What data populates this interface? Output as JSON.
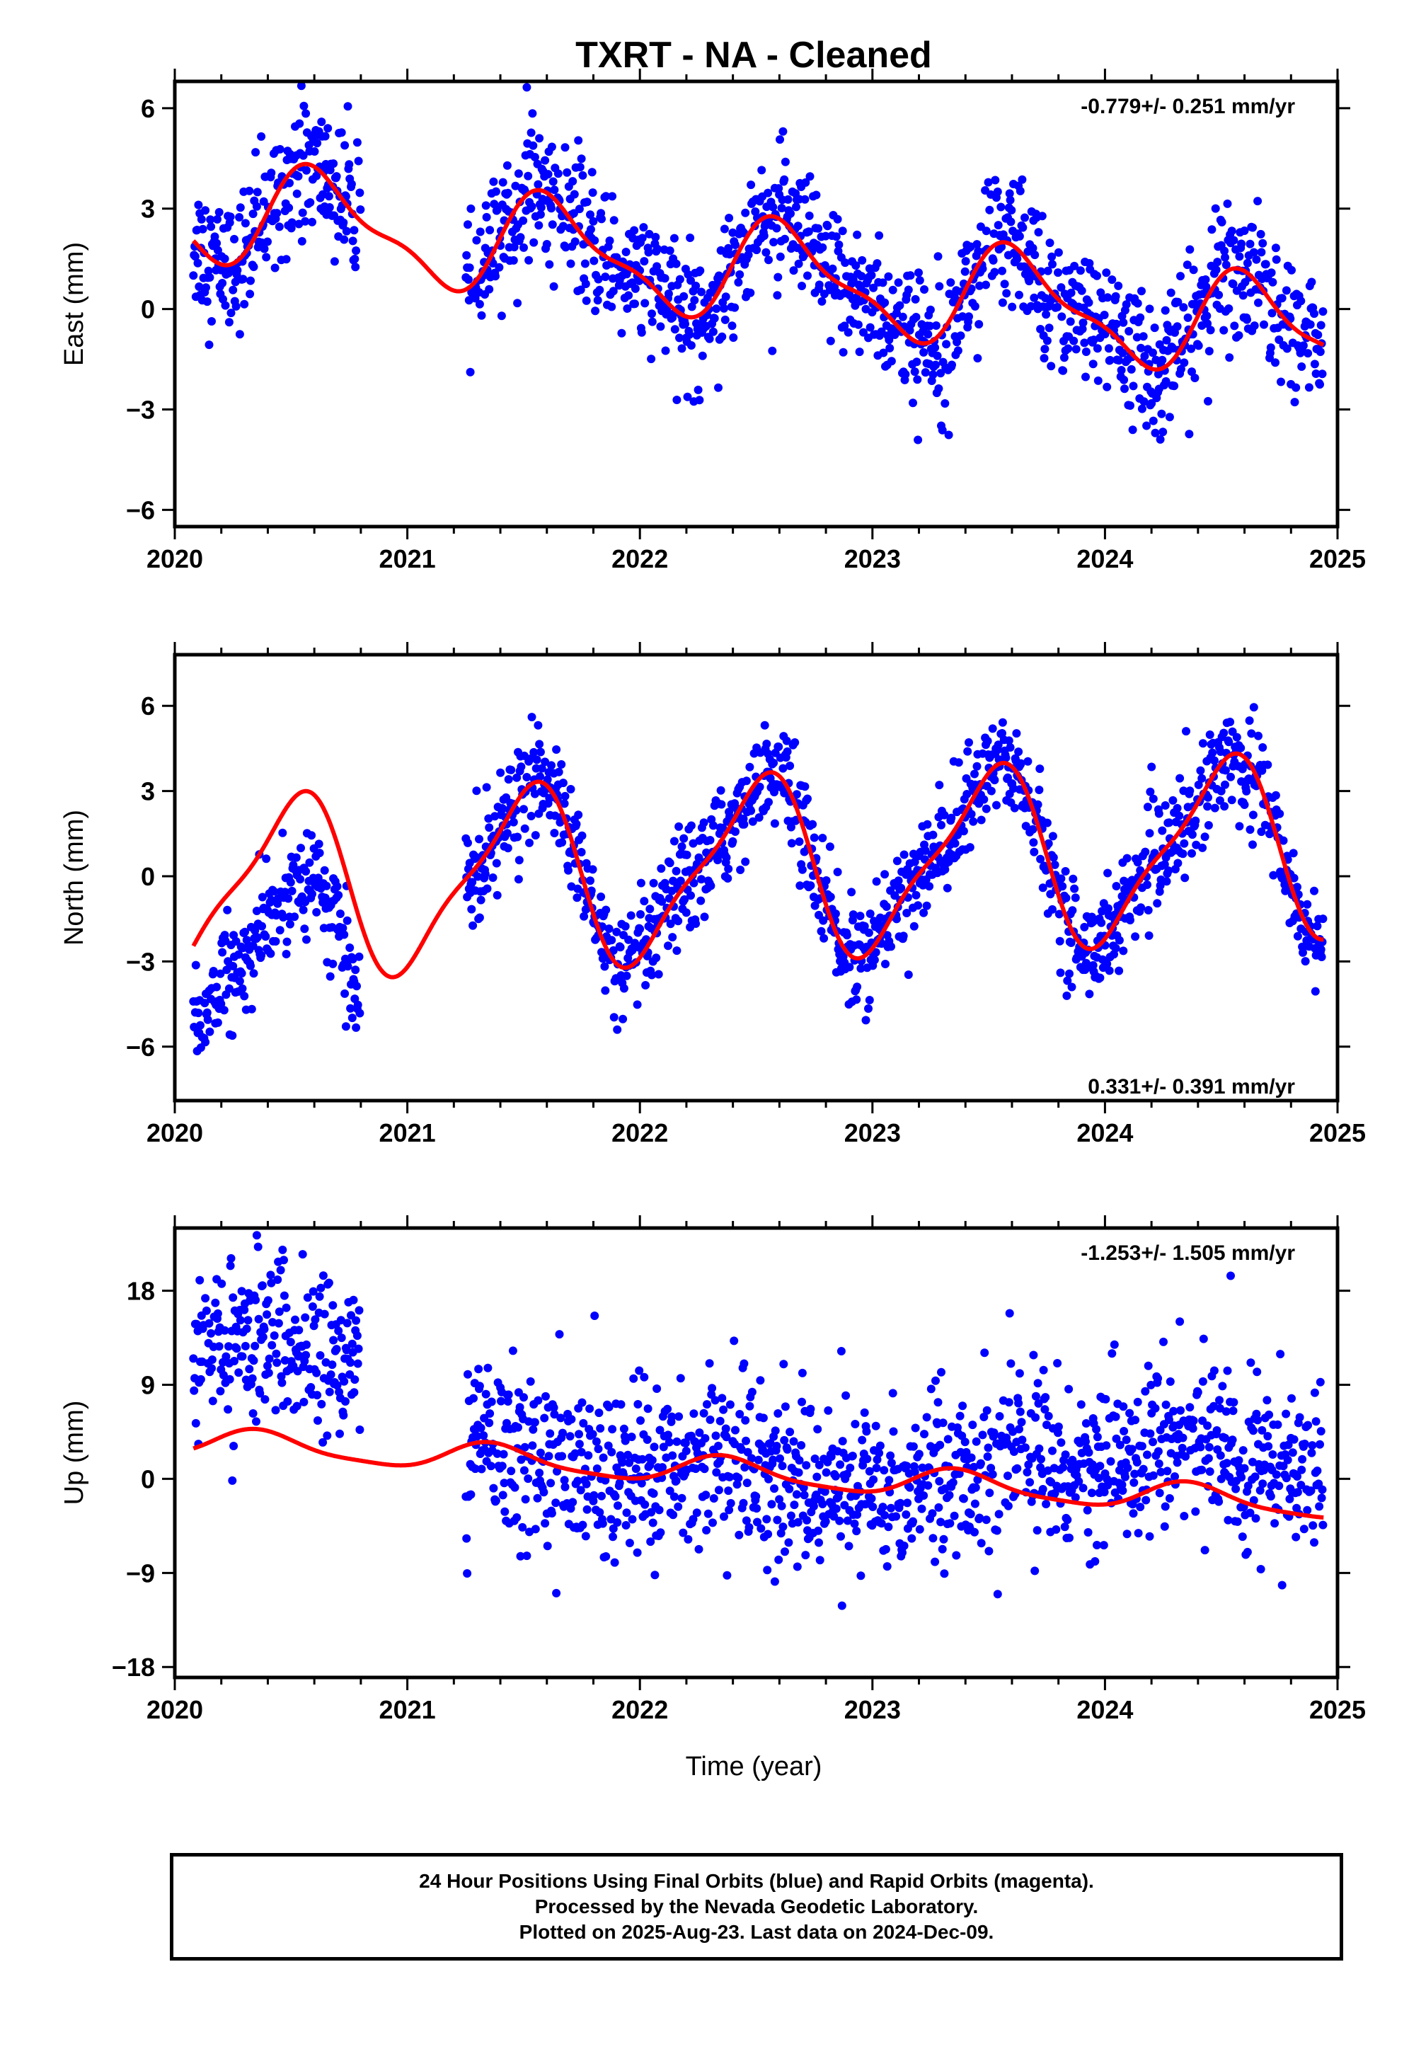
{
  "title": "TXRT  - NA - Cleaned",
  "xlabel": "Time (year)",
  "caption": [
    "24 Hour Positions Using Final Orbits (blue) and Rapid Orbits (magenta).",
    "Processed by the Nevada Geodetic Laboratory.",
    "Plotted on 2025-Aug-23. Last data on 2024-Dec-09."
  ],
  "colors": {
    "points": "#0000ff",
    "model": "#ff0000",
    "axes": "#000000"
  },
  "chart_data": [
    {
      "type": "scatter",
      "ylabel": "East (mm)",
      "rate_label": "-0.779+/- 0.251 mm/yr",
      "xlim": [
        2020,
        2025
      ],
      "ylim": [
        -6.5,
        6.8
      ],
      "xticks": [
        2020,
        2021,
        2022,
        2023,
        2024,
        2025
      ],
      "yticks": [
        -6,
        -3,
        0,
        3,
        6
      ],
      "ytick_labels": [
        "−6",
        "−3",
        "0",
        "3",
        "6"
      ],
      "series": [
        {
          "style": "points",
          "x_range": [
            2020.08,
            2024.94
          ],
          "gap": [
            2020.8,
            2021.25
          ],
          "mean_offset": 1.1,
          "trend": -0.779,
          "annual_amp": 1.4,
          "annual_phase": 0.38,
          "semi_amp": 0.5,
          "semi_phase": 0.9,
          "noise": 1.0,
          "mean_x": 2022.5
        },
        {
          "style": "model"
        }
      ]
    },
    {
      "type": "scatter",
      "ylabel": "North (mm)",
      "rate_label": "0.331+/- 0.391 mm/yr",
      "xlim": [
        2020,
        2025
      ],
      "ylim": [
        -7.9,
        7.8
      ],
      "xticks": [
        2020,
        2021,
        2022,
        2023,
        2024,
        2025
      ],
      "yticks": [
        -6,
        -3,
        0,
        3,
        6
      ],
      "ytick_labels": [
        "−6",
        "−3",
        "0",
        "3",
        "6"
      ],
      "series": [
        {
          "style": "points",
          "x_range": [
            2020.08,
            2024.94
          ],
          "gap": [
            2020.8,
            2021.25
          ],
          "mean_offset": 0.3,
          "trend": 0.331,
          "annual_amp": 3.0,
          "annual_phase": 0.25,
          "semi_amp": 0.8,
          "semi_phase": 0.5,
          "noise": 0.9,
          "mean_x": 2022.5,
          "early_offset": -3.0
        },
        {
          "style": "model"
        }
      ]
    },
    {
      "type": "scatter",
      "ylabel": "Up (mm)",
      "rate_label": "-1.253+/- 1.505 mm/yr",
      "xlim": [
        2020,
        2025
      ],
      "ylim": [
        -19,
        24
      ],
      "xticks": [
        2020,
        2021,
        2022,
        2023,
        2024,
        2025
      ],
      "yticks": [
        -18,
        -9,
        0,
        9,
        18
      ],
      "ytick_labels": [
        "−18",
        "−9",
        "0",
        "9",
        "18"
      ],
      "series": [
        {
          "style": "points",
          "x_range": [
            2020.08,
            2024.94
          ],
          "gap": [
            2020.8,
            2021.25
          ],
          "mean_offset": 0.5,
          "trend": -1.253,
          "annual_amp": 1.3,
          "annual_phase": 0.12,
          "semi_amp": 0.3,
          "semi_phase": 0.2,
          "noise": 4.0,
          "mean_x": 2022.5,
          "early_offset": 9.0,
          "late_offset": 4.0
        },
        {
          "style": "model"
        }
      ]
    }
  ]
}
